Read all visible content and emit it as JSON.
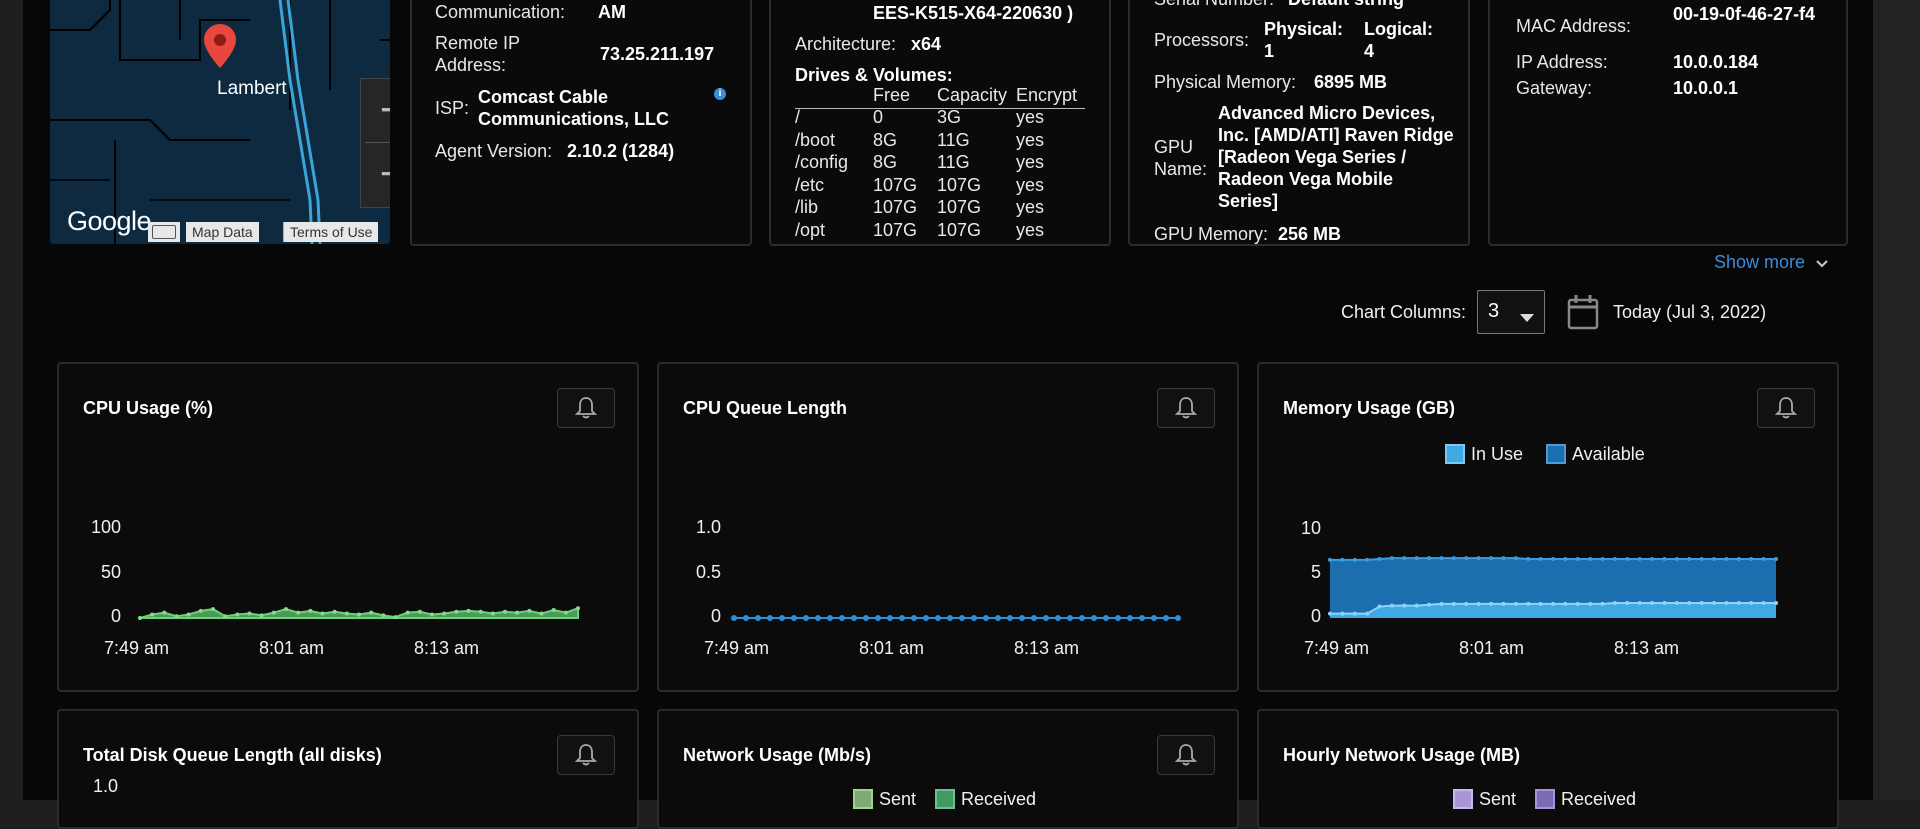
{
  "map": {
    "place_label": "Lambert",
    "logo": "Google",
    "map_data": "Map Data",
    "terms": "Terms of Use",
    "zoom_in": "+",
    "zoom_out": "−",
    "pin_icon": "map-pin-icon",
    "keyboard_icon": "keyboard-icon"
  },
  "agent": {
    "communication_label": "Communication:",
    "communication_value": "AM",
    "remote_ip_label": "Remote IP Address:",
    "remote_ip_value": "73.25.211.197",
    "isp_label": "ISP:",
    "isp_value": "Comcast Cable Communications, LLC",
    "info_icon": "info-icon",
    "version_label": "Agent Version:",
    "version_value": "2.10.2 (1284)"
  },
  "os": {
    "build_value": "EES-K515-X64-220630 )",
    "arch_label": "Architecture:",
    "arch_value": "x64",
    "drives_title": "Drives & Volumes:",
    "columns": [
      "Free",
      "Capacity",
      "Encrypt"
    ],
    "drives": [
      {
        "name": "/",
        "free": "0",
        "capacity": "3G",
        "encrypt": "yes"
      },
      {
        "name": "/boot",
        "free": "8G",
        "capacity": "11G",
        "encrypt": "yes"
      },
      {
        "name": "/config",
        "free": "8G",
        "capacity": "11G",
        "encrypt": "yes"
      },
      {
        "name": "/etc",
        "free": "107G",
        "capacity": "107G",
        "encrypt": "yes"
      },
      {
        "name": "/lib",
        "free": "107G",
        "capacity": "107G",
        "encrypt": "yes"
      },
      {
        "name": "/opt",
        "free": "107G",
        "capacity": "107G",
        "encrypt": "yes"
      }
    ]
  },
  "hardware": {
    "serial_label": "Serial Number:",
    "serial_value": "Default string",
    "processors_label": "Processors:",
    "physical": "Physical: 1",
    "logical": "Logical: 4",
    "memory_label": "Physical Memory:",
    "memory_value": "6895 MB",
    "gpu_name_label": "GPU Name:",
    "gpu_name_value": "Advanced Micro Devices, Inc. [AMD/ATI] Raven Ridge [Radeon Vega Series / Radeon Vega Mobile Series]",
    "gpu_memory_label": "GPU Memory:",
    "gpu_memory_value": "256 MB"
  },
  "network": {
    "mac_label": "MAC Address:",
    "mac_value": "00-19-0f-46-27-f4",
    "ip_label": "IP Address:",
    "ip_value": "10.0.0.184",
    "gateway_label": "Gateway:",
    "gateway_value": "10.0.0.1"
  },
  "controls": {
    "show_more": "Show more",
    "chart_columns_label": "Chart Columns:",
    "chart_columns_value": "3",
    "date_label": "Today (Jul 3, 2022)"
  },
  "colors": {
    "cpu_green": "#5fb86c",
    "queue_blue": "#2a8fd6",
    "mem_in_use": "#3fa9e6",
    "mem_available": "#1c6fae",
    "link_blue": "#3d8bd9"
  },
  "charts": {
    "cpu": {
      "title": "CPU Usage (%)"
    },
    "queue": {
      "title": "CPU Queue Length"
    },
    "memory": {
      "title": "Memory Usage (GB)",
      "legend": [
        "In Use",
        "Available"
      ]
    },
    "disk": {
      "title": "Total Disk Queue Length (all disks)",
      "ytop": "1.0"
    },
    "net": {
      "title": "Network Usage (Mb/s)",
      "legend": [
        "Sent",
        "Received"
      ]
    },
    "hourly": {
      "title": "Hourly Network Usage (MB)",
      "legend": [
        "Sent",
        "Received"
      ]
    }
  },
  "chart_data": [
    {
      "type": "area",
      "title": "CPU Usage (%)",
      "yticks": [
        "100",
        "50",
        "0"
      ],
      "xticks": [
        "7:49 am",
        "8:01 am",
        "8:13 am"
      ],
      "ylim": [
        0,
        100
      ],
      "series": [
        {
          "values": [
            0,
            4,
            6,
            2,
            4,
            8,
            10,
            2,
            4,
            5,
            3,
            6,
            10,
            6,
            8,
            5,
            7,
            5,
            4,
            6,
            3,
            1,
            6,
            7,
            4,
            5,
            7,
            8,
            7,
            5,
            7,
            6,
            8,
            5,
            9,
            6,
            11
          ]
        }
      ]
    },
    {
      "type": "line",
      "title": "CPU Queue Length",
      "yticks": [
        "1.0",
        "0.5",
        "0"
      ],
      "xticks": [
        "7:49 am",
        "8:01 am",
        "8:13 am"
      ],
      "ylim": [
        0,
        1
      ],
      "series": [
        {
          "values": [
            0,
            0,
            0,
            0,
            0,
            0,
            0,
            0,
            0,
            0,
            0,
            0,
            0,
            0,
            0,
            0,
            0,
            0,
            0,
            0,
            0,
            0,
            0,
            0,
            0,
            0,
            0,
            0,
            0,
            0,
            0,
            0,
            0,
            0,
            0,
            0,
            0,
            0
          ]
        }
      ]
    },
    {
      "type": "area",
      "title": "Memory Usage (GB)",
      "yticks": [
        "10",
        "5",
        "0"
      ],
      "xticks": [
        "7:49 am",
        "8:01 am",
        "8:13 am"
      ],
      "ylim": [
        0,
        10
      ],
      "series": [
        {
          "name": "In Use",
          "values": [
            0.5,
            0.5,
            0.5,
            0.5,
            1.3,
            1.4,
            1.4,
            1.4,
            1.5,
            1.6,
            1.6,
            1.6,
            1.6,
            1.6,
            1.6,
            1.6,
            1.6,
            1.6,
            1.6,
            1.6,
            1.6,
            1.6,
            1.6,
            1.7,
            1.7,
            1.7,
            1.7,
            1.7,
            1.7,
            1.7,
            1.7,
            1.7,
            1.7,
            1.7,
            1.7,
            1.7,
            1.7
          ]
        },
        {
          "name": "Available",
          "values": [
            6.1,
            6.1,
            6.1,
            6.1,
            5.4,
            5.4,
            5.4,
            5.4,
            5.3,
            5.2,
            5.2,
            5.2,
            5.2,
            5.2,
            5.2,
            5.2,
            5.1,
            5.1,
            5.1,
            5.1,
            5.1,
            5.1,
            5.1,
            5.0,
            5.0,
            5.0,
            5.0,
            5.0,
            5.0,
            5.0,
            5.0,
            5.0,
            5.0,
            5.0,
            5.0,
            5.0,
            5.0
          ]
        }
      ]
    }
  ]
}
